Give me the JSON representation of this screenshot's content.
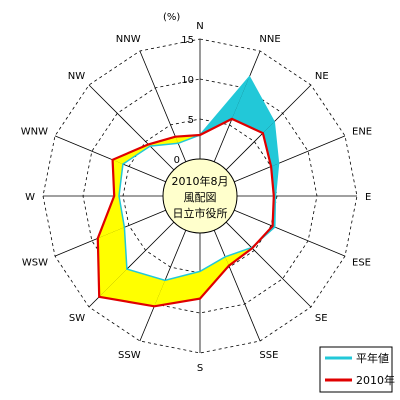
{
  "chart_data": {
    "type": "radar",
    "center_label": [
      "2010年8月",
      "風配図",
      "日立市役所"
    ],
    "unit_label": "(%)",
    "directions": [
      "N",
      "NNE",
      "NE",
      "ENE",
      "E",
      "ESE",
      "SE",
      "SSE",
      "S",
      "SSW",
      "SW",
      "WSW",
      "W",
      "WNW",
      "NW",
      "NNW"
    ],
    "radial_ticks": [
      5,
      10,
      15
    ],
    "r_max": 15,
    "calm_label": "0",
    "series": [
      {
        "name": "平年値",
        "color": "#22c8d8",
        "values": [
          3,
          11.5,
          8.5,
          6,
          4.8,
          5.5,
          4.5,
          3.6,
          4.8,
          6.8,
          8.3,
          5.6,
          5.5,
          5.8,
          4.2,
          2.5
        ]
      },
      {
        "name": "2010年",
        "color": "#e00000",
        "values": [
          3,
          5.8,
          6.5,
          5,
          4.6,
          5.2,
          4.6,
          4.8,
          8.2,
          10.3,
          13.2,
          9.2,
          6.1,
          7.2,
          4.5,
          3.4
        ]
      }
    ],
    "fills": {
      "annual_larger": "#22c8d8",
      "year_larger": "#ffff00"
    },
    "center_circle_color": "#ffffcc",
    "legend": {
      "position": "bottom-right"
    }
  }
}
